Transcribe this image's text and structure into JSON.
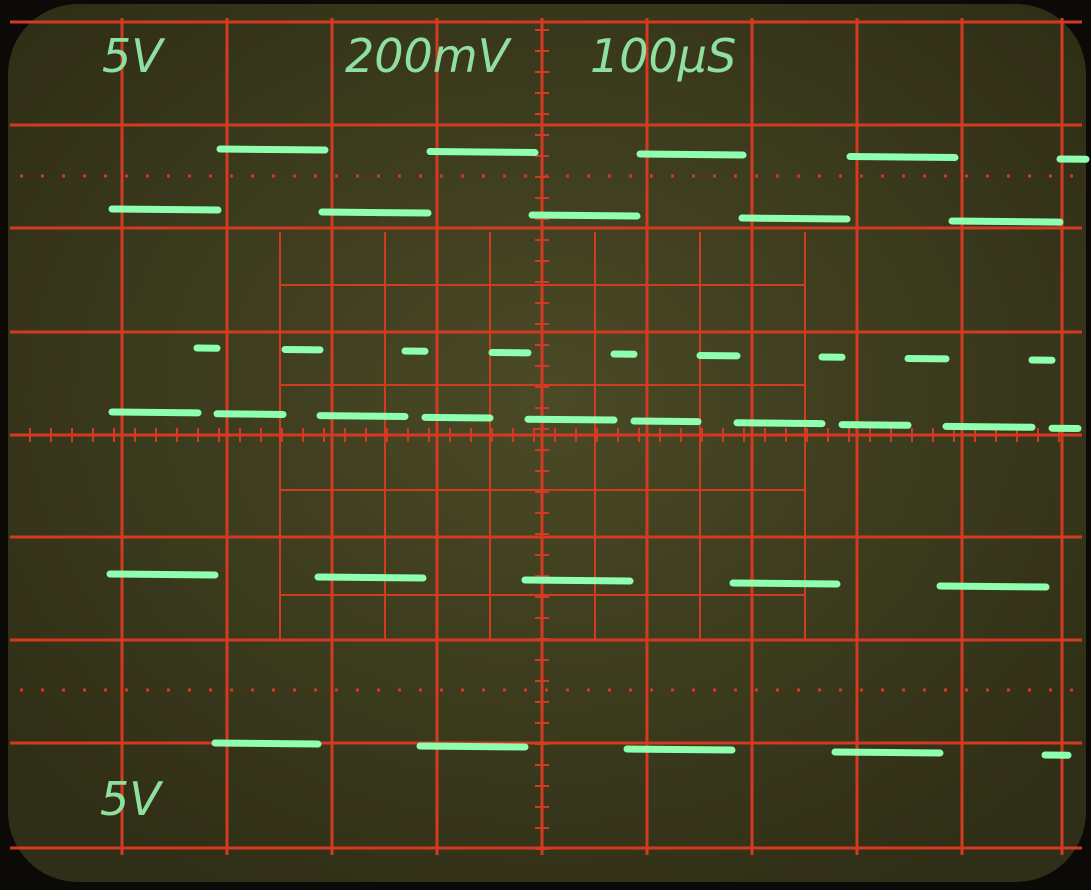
{
  "labels": [
    "5V",
    "200mV",
    "100µS",
    "5V"
  ]
}
